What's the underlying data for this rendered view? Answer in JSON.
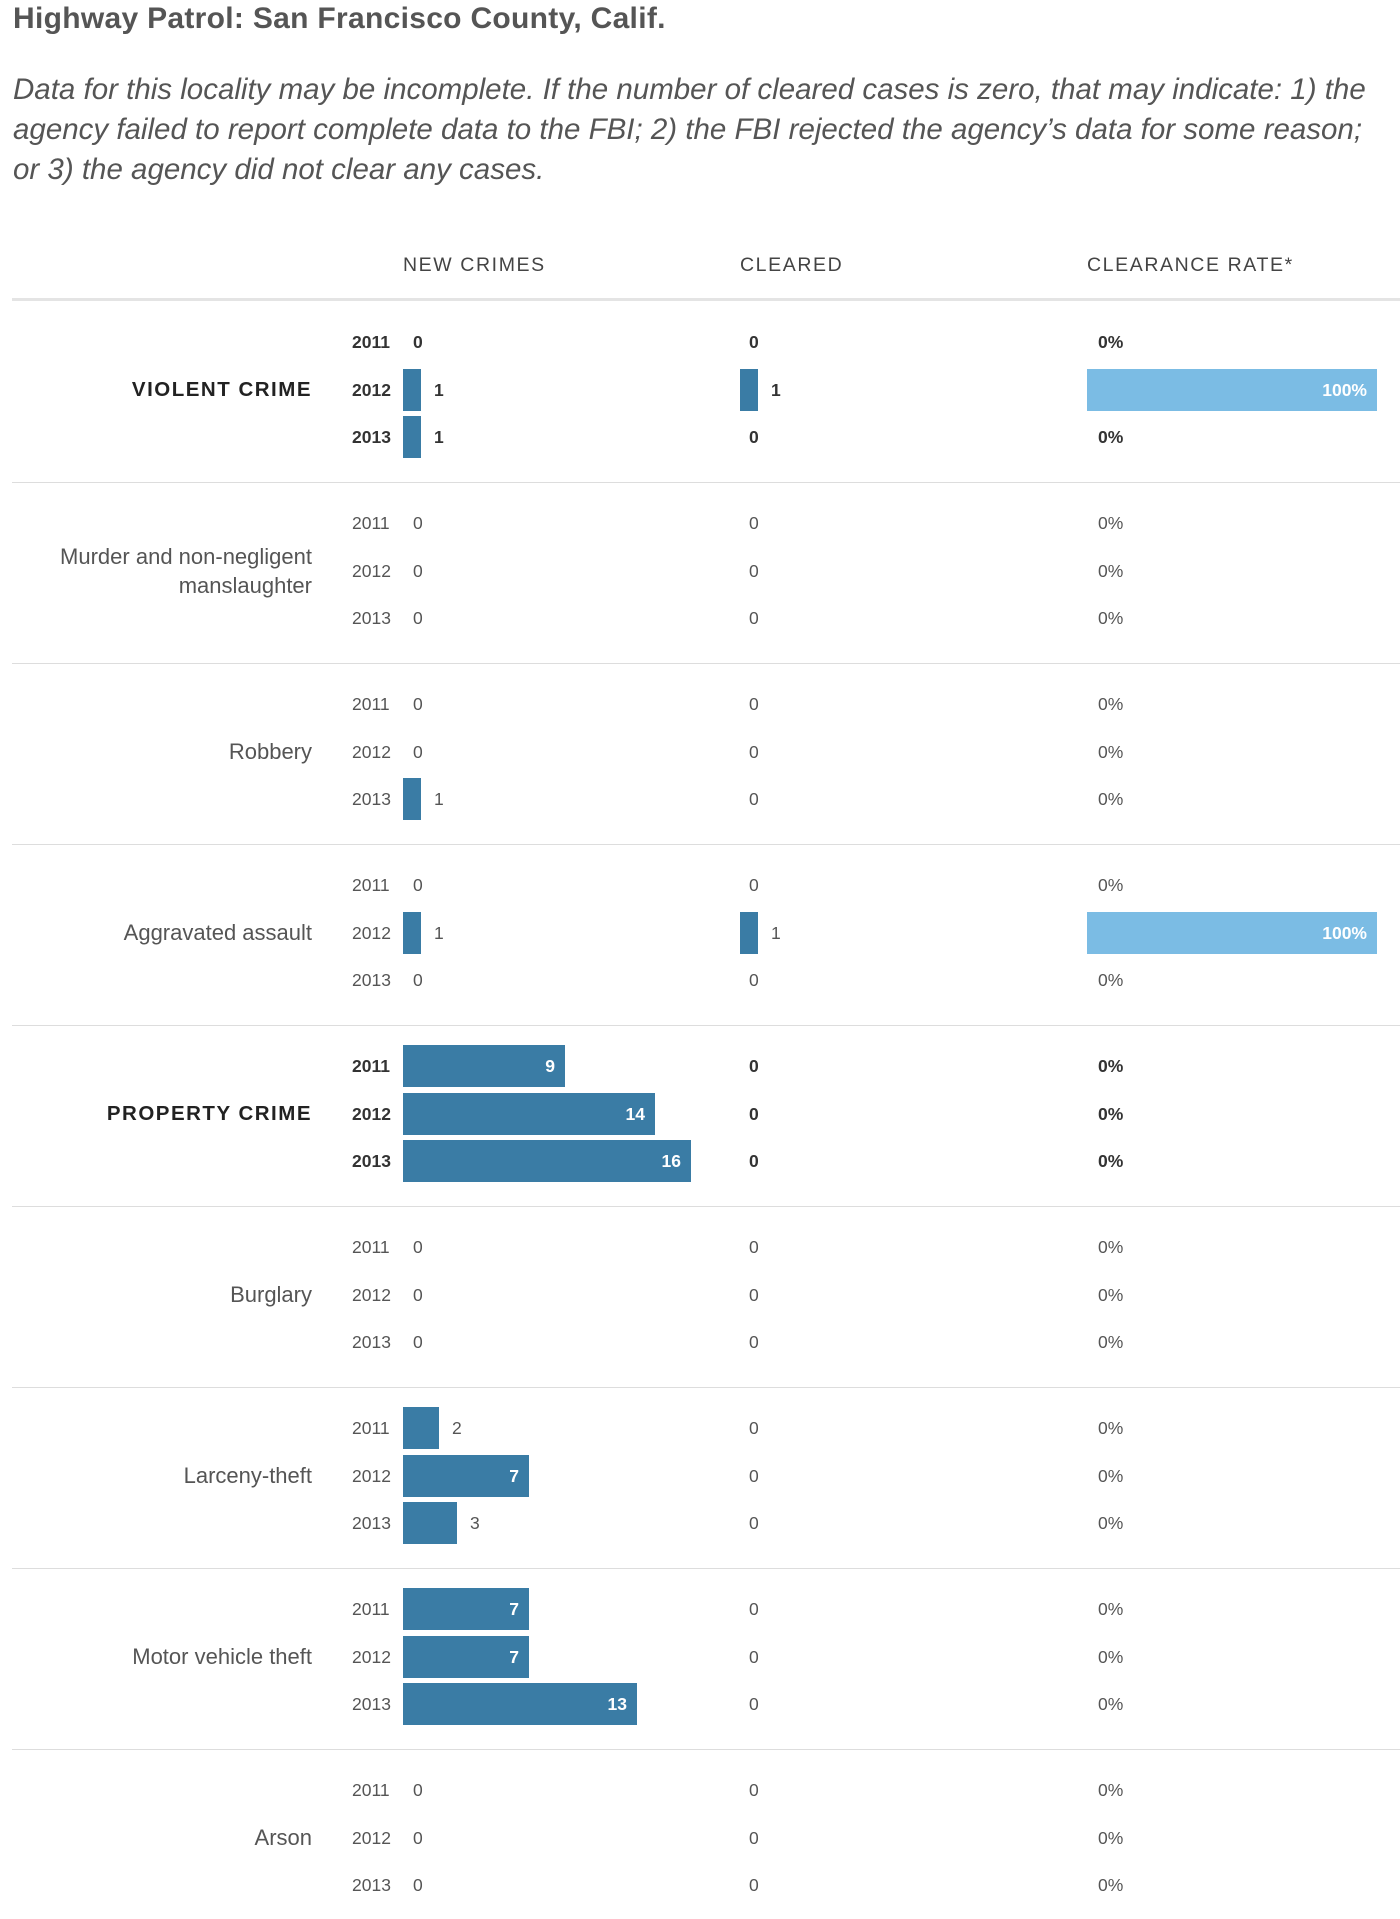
{
  "header": {
    "title": "Highway Patrol: San Francisco County, Calif.",
    "note": "Data for this locality may be incomplete. If the number of cleared cases is zero, that may indicate: 1) the agency failed to report complete data to the FBI; 2) the FBI rejected the agency’s data for some reason; or 3) the agency did not clear any cases."
  },
  "columns": {
    "new_crimes": "NEW CRIMES",
    "cleared": "CLEARED",
    "clearance_rate": "CLEARANCE RATE*"
  },
  "chart_data": {
    "type": "bar",
    "title": "Highway Patrol: San Francisco County, Calif.",
    "years": [
      "2011",
      "2012",
      "2013"
    ],
    "scale_max_new_crimes": 16,
    "scale_max_rate": 100,
    "groups": [
      {
        "category": "VIOLENT CRIME",
        "major": true,
        "rows": [
          {
            "year": "2011",
            "new": 0,
            "cleared": 0,
            "rate": 0,
            "rate_label": "0%"
          },
          {
            "year": "2012",
            "new": 1,
            "cleared": 1,
            "rate": 100,
            "rate_label": "100%"
          },
          {
            "year": "2013",
            "new": 1,
            "cleared": 0,
            "rate": 0,
            "rate_label": "0%"
          }
        ]
      },
      {
        "category": "Murder and non-negligent manslaughter",
        "major": false,
        "rows": [
          {
            "year": "2011",
            "new": 0,
            "cleared": 0,
            "rate": 0,
            "rate_label": "0%"
          },
          {
            "year": "2012",
            "new": 0,
            "cleared": 0,
            "rate": 0,
            "rate_label": "0%"
          },
          {
            "year": "2013",
            "new": 0,
            "cleared": 0,
            "rate": 0,
            "rate_label": "0%"
          }
        ]
      },
      {
        "category": "Robbery",
        "major": false,
        "rows": [
          {
            "year": "2011",
            "new": 0,
            "cleared": 0,
            "rate": 0,
            "rate_label": "0%"
          },
          {
            "year": "2012",
            "new": 0,
            "cleared": 0,
            "rate": 0,
            "rate_label": "0%"
          },
          {
            "year": "2013",
            "new": 1,
            "cleared": 0,
            "rate": 0,
            "rate_label": "0%"
          }
        ]
      },
      {
        "category": "Aggravated assault",
        "major": false,
        "rows": [
          {
            "year": "2011",
            "new": 0,
            "cleared": 0,
            "rate": 0,
            "rate_label": "0%"
          },
          {
            "year": "2012",
            "new": 1,
            "cleared": 1,
            "rate": 100,
            "rate_label": "100%"
          },
          {
            "year": "2013",
            "new": 0,
            "cleared": 0,
            "rate": 0,
            "rate_label": "0%"
          }
        ]
      },
      {
        "category": "PROPERTY CRIME",
        "major": true,
        "rows": [
          {
            "year": "2011",
            "new": 9,
            "cleared": 0,
            "rate": 0,
            "rate_label": "0%"
          },
          {
            "year": "2012",
            "new": 14,
            "cleared": 0,
            "rate": 0,
            "rate_label": "0%"
          },
          {
            "year": "2013",
            "new": 16,
            "cleared": 0,
            "rate": 0,
            "rate_label": "0%"
          }
        ]
      },
      {
        "category": "Burglary",
        "major": false,
        "rows": [
          {
            "year": "2011",
            "new": 0,
            "cleared": 0,
            "rate": 0,
            "rate_label": "0%"
          },
          {
            "year": "2012",
            "new": 0,
            "cleared": 0,
            "rate": 0,
            "rate_label": "0%"
          },
          {
            "year": "2013",
            "new": 0,
            "cleared": 0,
            "rate": 0,
            "rate_label": "0%"
          }
        ]
      },
      {
        "category": "Larceny-theft",
        "major": false,
        "rows": [
          {
            "year": "2011",
            "new": 2,
            "cleared": 0,
            "rate": 0,
            "rate_label": "0%"
          },
          {
            "year": "2012",
            "new": 7,
            "cleared": 0,
            "rate": 0,
            "rate_label": "0%"
          },
          {
            "year": "2013",
            "new": 3,
            "cleared": 0,
            "rate": 0,
            "rate_label": "0%"
          }
        ]
      },
      {
        "category": "Motor vehicle theft",
        "major": false,
        "rows": [
          {
            "year": "2011",
            "new": 7,
            "cleared": 0,
            "rate": 0,
            "rate_label": "0%"
          },
          {
            "year": "2012",
            "new": 7,
            "cleared": 0,
            "rate": 0,
            "rate_label": "0%"
          },
          {
            "year": "2013",
            "new": 13,
            "cleared": 0,
            "rate": 0,
            "rate_label": "0%"
          }
        ]
      },
      {
        "category": "Arson",
        "major": false,
        "rows": [
          {
            "year": "2011",
            "new": 0,
            "cleared": 0,
            "rate": 0,
            "rate_label": "0%"
          },
          {
            "year": "2012",
            "new": 0,
            "cleared": 0,
            "rate": 0,
            "rate_label": "0%"
          },
          {
            "year": "2013",
            "new": 0,
            "cleared": 0,
            "rate": 0,
            "rate_label": "0%"
          }
        ]
      }
    ]
  }
}
